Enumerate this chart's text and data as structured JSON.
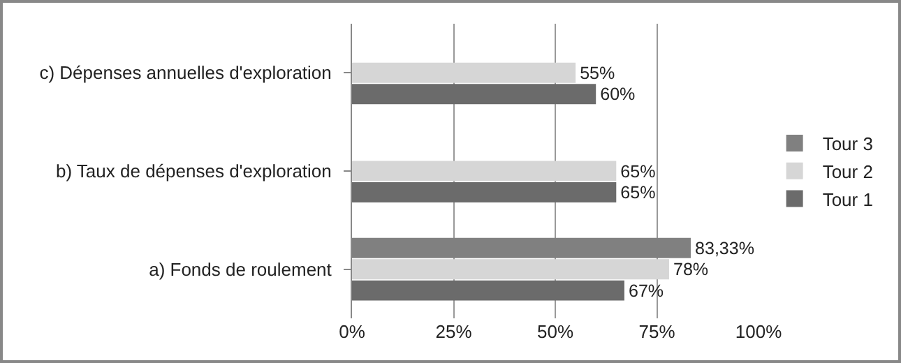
{
  "chart_data": {
    "type": "bar",
    "orientation": "horizontal",
    "categories": [
      "c) Dépenses annuelles d'exploration",
      "b) Taux de dépenses d'exploration",
      "a) Fonds de roulement"
    ],
    "series": [
      {
        "name": "Tour 3",
        "color": "#808080",
        "values": [
          null,
          null,
          83.33
        ],
        "value_labels": [
          null,
          null,
          "83,33%"
        ]
      },
      {
        "name": "Tour 2",
        "color": "#d6d6d6",
        "values": [
          55,
          65,
          78
        ],
        "value_labels": [
          "55%",
          "65%",
          "78%"
        ]
      },
      {
        "name": "Tour 1",
        "color": "#6b6b6b",
        "values": [
          60,
          65,
          67
        ],
        "value_labels": [
          "60%",
          "65%",
          "67%"
        ]
      }
    ],
    "xlim": [
      0,
      100
    ],
    "xticks": [
      {
        "value": 0,
        "label": "0%"
      },
      {
        "value": 25,
        "label": "25%"
      },
      {
        "value": 50,
        "label": "50%"
      },
      {
        "value": 75,
        "label": "75%"
      },
      {
        "value": 100,
        "label": "100%"
      }
    ],
    "grid": "x",
    "legend": "right"
  }
}
